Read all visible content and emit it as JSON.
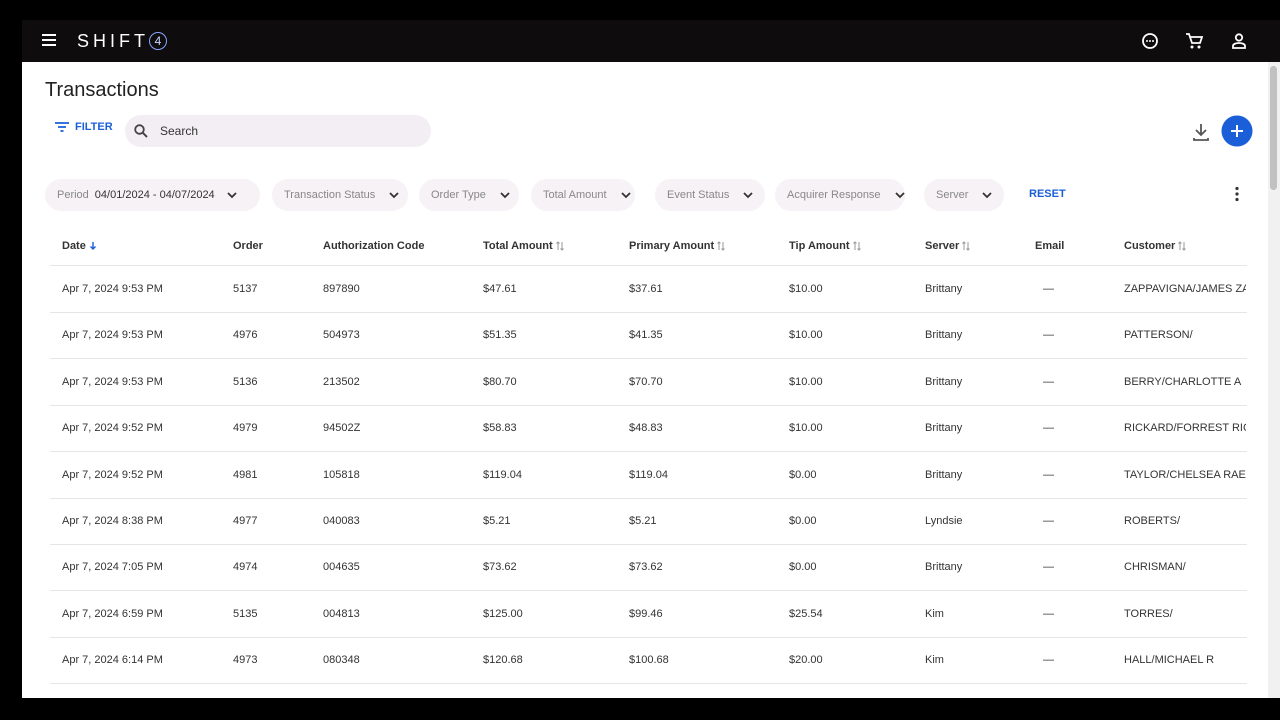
{
  "header": {
    "logo": "SHIFT",
    "logo_mark": "4"
  },
  "page": {
    "title": "Transactions",
    "filter": "FILTER",
    "search": "Search"
  },
  "filters": {
    "period_label": "Period",
    "period_value": "04/01/2024 - 04/07/2024",
    "chips": [
      "Transaction Status",
      "Order Type",
      "Total Amount",
      "Event Status",
      "Acquirer Response",
      "Server"
    ],
    "reset": "RESET"
  },
  "table": {
    "columns": [
      "Date",
      "Order",
      "Authorization Code",
      "Total Amount",
      "Primary Amount",
      "Tip Amount",
      "Server",
      "Email",
      "Customer"
    ],
    "rows": [
      [
        "Apr 7, 2024 9:53 PM",
        "5137",
        "897890",
        "$47.61",
        "$37.61",
        "$10.00",
        "Brittany",
        "—",
        "ZAPPAVIGNA/JAMES ZAI"
      ],
      [
        "Apr 7, 2024 9:53 PM",
        "4976",
        "504973",
        "$51.35",
        "$41.35",
        "$10.00",
        "Brittany",
        "—",
        "PATTERSON/"
      ],
      [
        "Apr 7, 2024 9:53 PM",
        "5136",
        "213502",
        "$80.70",
        "$70.70",
        "$10.00",
        "Brittany",
        "—",
        "BERRY/CHARLOTTE A"
      ],
      [
        "Apr 7, 2024 9:52 PM",
        "4979",
        "94502Z",
        "$58.83",
        "$48.83",
        "$10.00",
        "Brittany",
        "—",
        "RICKARD/FORREST RICK"
      ],
      [
        "Apr 7, 2024 9:52 PM",
        "4981",
        "105818",
        "$119.04",
        "$119.04",
        "$0.00",
        "Brittany",
        "—",
        "TAYLOR/CHELSEA RAE"
      ],
      [
        "Apr 7, 2024 8:38 PM",
        "4977",
        "040083",
        "$5.21",
        "$5.21",
        "$0.00",
        "Lyndsie",
        "—",
        "ROBERTS/"
      ],
      [
        "Apr 7, 2024 7:05 PM",
        "4974",
        "004635",
        "$73.62",
        "$73.62",
        "$0.00",
        "Brittany",
        "—",
        "CHRISMAN/"
      ],
      [
        "Apr 7, 2024 6:59 PM",
        "5135",
        "004813",
        "$125.00",
        "$99.46",
        "$25.54",
        "Kim",
        "—",
        "TORRES/"
      ],
      [
        "Apr 7, 2024 6:14 PM",
        "4973",
        "080348",
        "$120.68",
        "$100.68",
        "$20.00",
        "Kim",
        "—",
        "HALL/MICHAEL R"
      ]
    ]
  }
}
